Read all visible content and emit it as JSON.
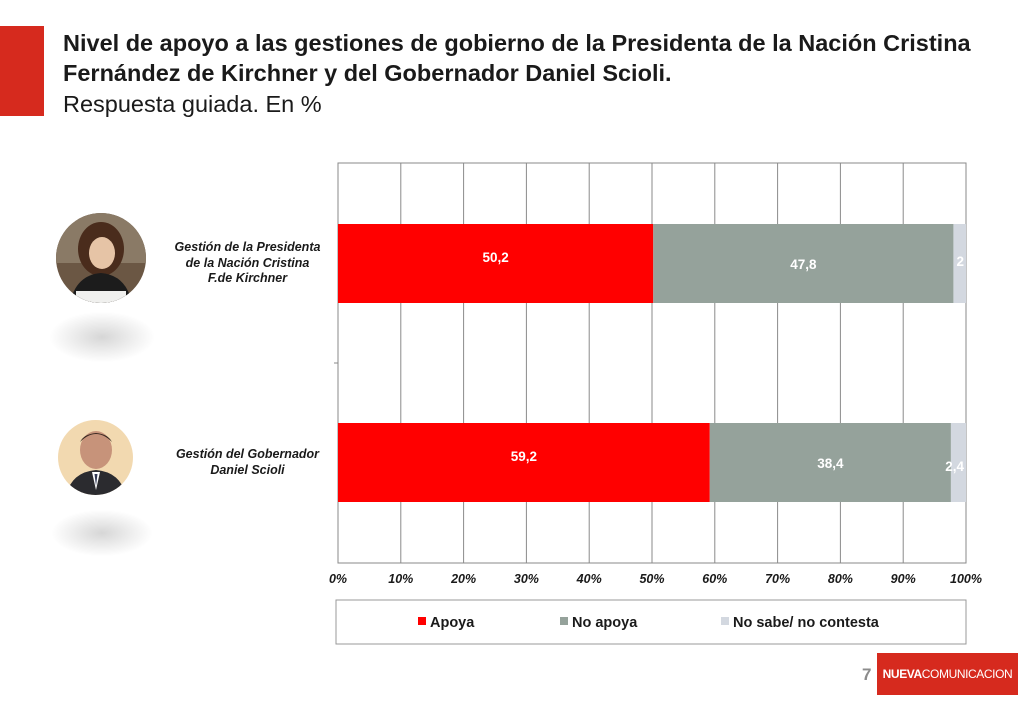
{
  "title": "Nivel de apoyo a las gestiones de gobierno de la Presidenta de la Nación Cristina Fernández de Kirchner y del Gobernador Daniel Scioli.",
  "subtitle": "Respuesta guiada. En %",
  "page_number": "7",
  "brand": {
    "part1": "NUEVA",
    "part2": "COMUNICACION"
  },
  "colors": {
    "accent": "#d62a1e",
    "apoya": "#ff0000",
    "no_apoya": "#95a29b",
    "no_sabe": "#d3d8e0"
  },
  "chart_data": {
    "type": "bar",
    "orientation": "horizontal",
    "stacked": true,
    "categories": [
      "Gestión de la Presidenta de la Nación Cristina F.de Kirchner",
      "Gestión del Gobernador Daniel Scioli"
    ],
    "category_lines": [
      [
        "Gestión de la Presidenta",
        "de la Nación Cristina",
        "F.de Kirchner"
      ],
      [
        "Gestión del Gobernador",
        "Daniel Scioli"
      ]
    ],
    "series": [
      {
        "name": "Apoya",
        "values": [
          50.2,
          59.2
        ],
        "labels": [
          "50,2",
          "59,2"
        ]
      },
      {
        "name": "No apoya",
        "values": [
          47.8,
          38.4
        ],
        "labels": [
          "47,8",
          "38,4"
        ]
      },
      {
        "name": "No sabe/ no contesta",
        "values": [
          2,
          2.4
        ],
        "labels": [
          "2",
          "2,4"
        ]
      }
    ],
    "xlim": [
      0,
      100
    ],
    "x_ticks": [
      "0%",
      "10%",
      "20%",
      "30%",
      "40%",
      "50%",
      "60%",
      "70%",
      "80%",
      "90%",
      "100%"
    ],
    "grid": true,
    "legend_position": "bottom"
  }
}
